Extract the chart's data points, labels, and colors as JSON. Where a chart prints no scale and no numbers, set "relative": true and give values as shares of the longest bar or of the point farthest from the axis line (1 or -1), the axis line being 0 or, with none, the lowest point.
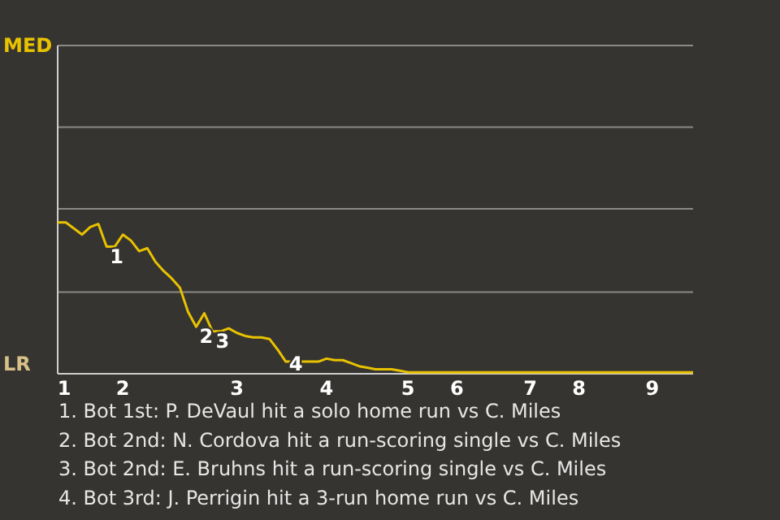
{
  "chart_data": {
    "type": "line",
    "relative": true,
    "categories": [
      "1",
      null,
      null,
      null,
      null,
      null,
      null,
      null,
      "2",
      null,
      null,
      null,
      null,
      null,
      null,
      null,
      null,
      null,
      null,
      null,
      null,
      null,
      "3",
      null,
      null,
      null,
      null,
      null,
      null,
      null,
      null,
      null,
      null,
      "4",
      null,
      null,
      null,
      null,
      null,
      null,
      null,
      null,
      null,
      "5",
      null,
      null,
      null,
      null,
      null,
      "6",
      null,
      null,
      null,
      null,
      null,
      null,
      null,
      null,
      "7",
      null,
      null,
      null,
      null,
      null,
      "8",
      null,
      null,
      null,
      null,
      null,
      null,
      null,
      null,
      "9",
      null,
      null,
      null,
      null,
      null
    ],
    "series": [
      {
        "color": "#e8c200",
        "values": [
          1.0,
          1.0,
          0.96,
          0.92,
          0.97,
          0.99,
          0.84,
          0.84,
          0.92,
          0.88,
          0.81,
          0.83,
          0.74,
          0.68,
          0.63,
          0.57,
          0.41,
          0.31,
          0.4,
          0.28,
          0.28,
          0.3,
          0.27,
          0.25,
          0.24,
          0.24,
          0.23,
          0.16,
          0.08,
          0.08,
          0.08,
          0.08,
          0.08,
          0.1,
          0.09,
          0.09,
          0.07,
          0.05,
          0.04,
          0.03,
          0.03,
          0.03,
          0.02,
          0.01,
          0.01,
          0.01,
          0.01,
          0.01,
          0.01,
          0.01,
          0.01,
          0.01,
          0.01,
          0.01,
          0.01,
          0.01,
          0.01,
          0.01,
          0.01,
          0.01,
          0.01,
          0.01,
          0.01,
          0.01,
          0.01,
          0.01,
          0.01,
          0.01,
          0.01,
          0.01,
          0.01,
          0.01,
          0.01,
          0.01,
          0.01,
          0.01,
          0.01,
          0.01,
          0.01
        ]
      }
    ],
    "ref_lines": [
      {
        "axis": "y",
        "value": 0.54,
        "color": "#8a8986"
      },
      {
        "axis": "y",
        "value": 1.09,
        "color": "#8a8986"
      },
      {
        "axis": "y",
        "value": 1.63,
        "color": "#8a8986"
      },
      {
        "axis": "y",
        "value": 2.17,
        "color": "#8a8986"
      }
    ],
    "annotations": [
      "LR",
      "MED",
      {
        "text": "1",
        "y": 0.84
      },
      {
        "text": "2",
        "y": 0.31
      },
      {
        "text": "3",
        "y": 0.28
      },
      {
        "text": "4",
        "y": 0.08
      },
      "1. Bot 1st: P. DeVaul hit a solo home run vs C. Miles",
      "2. Bot 2nd: N. Cordova hit a run-scoring single vs C. Miles",
      "3. Bot 2nd: E. Bruhns hit a run-scoring single vs C. Miles",
      "4. Bot 3rd: J. Perrigin hit a 3-run home run vs C. Miles"
    ]
  }
}
